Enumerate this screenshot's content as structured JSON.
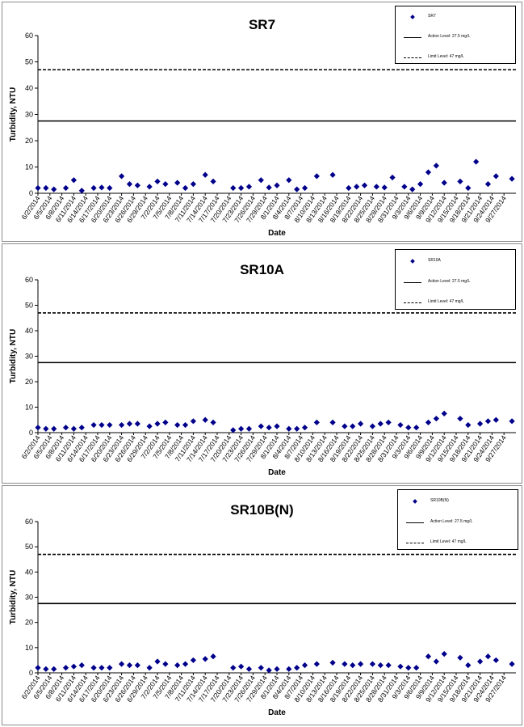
{
  "dates": [
    "6/2/2014",
    "6/5/2014",
    "6/8/2014",
    "6/11/2014",
    "6/14/2014",
    "6/17/2014",
    "6/20/2014",
    "6/23/2014",
    "6/26/2014",
    "6/29/2014",
    "7/2/2014",
    "7/5/2014",
    "7/8/2014",
    "7/11/2014",
    "7/14/2014",
    "7/17/2014",
    "7/20/2014",
    "7/23/2014",
    "7/26/2014",
    "7/29/2014",
    "8/1/2014",
    "8/4/2014",
    "8/7/2014",
    "8/10/2014",
    "8/13/2014",
    "8/16/2014",
    "8/19/2014",
    "8/22/2014",
    "8/25/2014",
    "8/28/2014",
    "8/31/2014",
    "9/3/2014",
    "9/6/2014",
    "9/9/2014",
    "9/12/2014",
    "9/15/2014",
    "9/18/2014",
    "9/21/2014",
    "9/24/2014",
    "9/27/2014"
  ],
  "colors": {
    "marker": "#00008b",
    "line": "#000000",
    "frame": "#8c8c8c"
  },
  "chart_data": [
    {
      "type": "scatter",
      "title": "SR7",
      "xlabel": "Date",
      "ylabel": "Turbidity, NTU",
      "ylim": [
        0,
        60
      ],
      "yticks": [
        0,
        10,
        20,
        30,
        40,
        50,
        60
      ],
      "x_start": "6/2/2014",
      "x_end": "9/30/2014",
      "grid": false,
      "legend_position": "top-right",
      "legend": {
        "series": "SR7",
        "action": "Action Level: 27.5 mg/L",
        "limit": "Limit Level: 47 mg/L"
      },
      "reference_lines": [
        {
          "name": "Action Level: 27.5 mg/L",
          "y": 27.5,
          "style": "solid"
        },
        {
          "name": "Limit Level: 47 mg/L",
          "y": 47,
          "style": "dashed"
        }
      ],
      "series": [
        {
          "name": "SR7",
          "x": [
            "6/2/2014",
            "6/4/2014",
            "6/6/2014",
            "6/9/2014",
            "6/11/2014",
            "6/13/2014",
            "6/16/2014",
            "6/18/2014",
            "6/20/2014",
            "6/23/2014",
            "6/25/2014",
            "6/27/2014",
            "6/30/2014",
            "7/2/2014",
            "7/4/2014",
            "7/7/2014",
            "7/9/2014",
            "7/11/2014",
            "7/14/2014",
            "7/16/2014",
            "7/21/2014",
            "7/23/2014",
            "7/25/2014",
            "7/28/2014",
            "7/30/2014",
            "8/1/2014",
            "8/4/2014",
            "8/6/2014",
            "8/8/2014",
            "8/11/2014",
            "8/15/2014",
            "8/19/2014",
            "8/21/2014",
            "8/23/2014",
            "8/26/2014",
            "8/28/2014",
            "8/30/2014",
            "9/2/2014",
            "9/4/2014",
            "9/6/2014",
            "9/8/2014",
            "9/10/2014",
            "9/12/2014",
            "9/16/2014",
            "9/18/2014",
            "9/20/2014",
            "9/23/2014",
            "9/25/2014",
            "9/29/2014"
          ],
          "y": [
            2,
            2,
            1.5,
            2,
            5,
            1,
            2,
            2.2,
            2,
            6.5,
            3.5,
            3,
            2.5,
            4.5,
            3.5,
            4,
            2,
            3.5,
            7,
            4.5,
            2,
            2,
            2.5,
            5,
            2.2,
            3,
            5,
            1.5,
            2,
            6.5,
            7,
            2,
            2.5,
            3,
            2.5,
            2.2,
            6,
            2.5,
            1.5,
            3.5,
            8,
            10.5,
            4,
            4.5,
            2,
            12,
            3.5,
            6.5,
            5.5
          ]
        }
      ]
    },
    {
      "type": "scatter",
      "title": "SR10A",
      "xlabel": "Date",
      "ylabel": "Turbidity, NTU",
      "ylim": [
        0,
        60
      ],
      "yticks": [
        0,
        10,
        20,
        30,
        40,
        50,
        60
      ],
      "x_start": "6/2/2014",
      "x_end": "9/30/2014",
      "grid": false,
      "legend_position": "top-right",
      "legend": {
        "series": "SR10A",
        "action": "Action Level: 27.5 mg/L",
        "limit": "Limit Level: 47 mg/L"
      },
      "reference_lines": [
        {
          "name": "Action Level: 27.5 mg/L",
          "y": 27.5,
          "style": "solid"
        },
        {
          "name": "Limit Level: 47 mg/L",
          "y": 47,
          "style": "dashed"
        }
      ],
      "series": [
        {
          "name": "SR10A",
          "x": [
            "6/2/2014",
            "6/4/2014",
            "6/6/2014",
            "6/9/2014",
            "6/11/2014",
            "6/13/2014",
            "6/16/2014",
            "6/18/2014",
            "6/20/2014",
            "6/23/2014",
            "6/25/2014",
            "6/27/2014",
            "6/30/2014",
            "7/2/2014",
            "7/4/2014",
            "7/7/2014",
            "7/9/2014",
            "7/11/2014",
            "7/14/2014",
            "7/16/2014",
            "7/21/2014",
            "7/23/2014",
            "7/25/2014",
            "7/28/2014",
            "7/30/2014",
            "8/1/2014",
            "8/4/2014",
            "8/6/2014",
            "8/8/2014",
            "8/11/2014",
            "8/15/2014",
            "8/18/2014",
            "8/20/2014",
            "8/22/2014",
            "8/25/2014",
            "8/27/2014",
            "8/29/2014",
            "9/1/2014",
            "9/3/2014",
            "9/5/2014",
            "9/8/2014",
            "9/10/2014",
            "9/12/2014",
            "9/16/2014",
            "9/18/2014",
            "9/21/2014",
            "9/23/2014",
            "9/25/2014",
            "9/29/2014"
          ],
          "y": [
            2,
            1.5,
            1.5,
            2,
            1.5,
            2,
            3,
            3,
            3,
            3,
            3.5,
            3.5,
            2.5,
            3.5,
            4,
            3,
            3,
            4.5,
            5,
            4,
            1,
            1.5,
            1.5,
            2.5,
            2,
            2.5,
            1.5,
            1.5,
            2,
            4,
            4,
            2.5,
            2.5,
            3.5,
            2.5,
            3.5,
            4,
            3,
            2,
            2,
            4,
            5.5,
            7.5,
            5.5,
            3,
            3.5,
            4.5,
            5,
            4.5
          ]
        }
      ]
    },
    {
      "type": "scatter",
      "title": "SR10B(N)",
      "xlabel": "Date",
      "ylabel": "Turbidity, NTU",
      "ylim": [
        0,
        60
      ],
      "yticks": [
        0,
        10,
        20,
        30,
        40,
        50,
        60
      ],
      "x_start": "6/2/2014",
      "x_end": "9/30/2014",
      "grid": false,
      "legend_position": "top-right",
      "legend": {
        "series": "SR10B(N)",
        "action": "Action Level: 27.5 mg/L",
        "limit": "Limit Level: 47 mg/L"
      },
      "reference_lines": [
        {
          "name": "Action Level: 27.5 mg/L",
          "y": 27.5,
          "style": "solid"
        },
        {
          "name": "Limit Level: 47 mg/L",
          "y": 47,
          "style": "dashed"
        }
      ],
      "series": [
        {
          "name": "SR10B(N)",
          "x": [
            "6/2/2014",
            "6/4/2014",
            "6/6/2014",
            "6/9/2014",
            "6/11/2014",
            "6/13/2014",
            "6/16/2014",
            "6/18/2014",
            "6/20/2014",
            "6/23/2014",
            "6/25/2014",
            "6/27/2014",
            "6/30/2014",
            "7/2/2014",
            "7/4/2014",
            "7/7/2014",
            "7/9/2014",
            "7/11/2014",
            "7/14/2014",
            "7/16/2014",
            "7/21/2014",
            "7/23/2014",
            "7/25/2014",
            "7/28/2014",
            "7/30/2014",
            "8/1/2014",
            "8/4/2014",
            "8/6/2014",
            "8/8/2014",
            "8/11/2014",
            "8/15/2014",
            "8/18/2014",
            "8/20/2014",
            "8/22/2014",
            "8/25/2014",
            "8/27/2014",
            "8/29/2014",
            "9/1/2014",
            "9/3/2014",
            "9/5/2014",
            "9/8/2014",
            "9/10/2014",
            "9/12/2014",
            "9/16/2014",
            "9/18/2014",
            "9/21/2014",
            "9/23/2014",
            "9/25/2014",
            "9/29/2014"
          ],
          "y": [
            2,
            1.5,
            1.5,
            2,
            2.5,
            3,
            2,
            2,
            2,
            3.5,
            3,
            3,
            2,
            4.5,
            3.5,
            3,
            3.5,
            5,
            5.5,
            6.5,
            2,
            2.5,
            1.5,
            2,
            1,
            1.5,
            1.5,
            2,
            3,
            3.5,
            4,
            3.5,
            3,
            3.5,
            3.5,
            3,
            3,
            2.5,
            2,
            2,
            6.5,
            4.5,
            7.5,
            6,
            3,
            4.5,
            6.5,
            5,
            3.5
          ]
        }
      ]
    }
  ]
}
